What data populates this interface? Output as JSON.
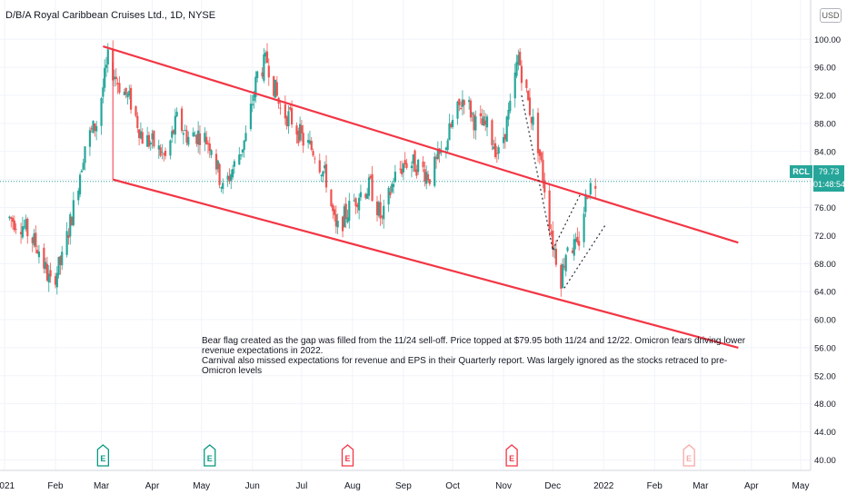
{
  "header": {
    "title": "D/B/A Royal Caribbean Cruises Ltd., 1D, NYSE",
    "currency": "USD"
  },
  "last_price": {
    "ticker": "RCL",
    "price": "79.73",
    "countdown": "01:48:54"
  },
  "annotation": {
    "line1": "Bear flag created as the gap was filled from the 11/24 sell-off. Price topped at $79.95 both 11/24 and 12/22. Omicron fears driving lower revenue expectations in 2022.",
    "line2": "Carnival also missed expectations for revenue and EPS in their Quarterly report.  Was largely ignored as the stocks retraced to pre-Omicron levels"
  },
  "colors": {
    "up": "#26a69a",
    "down": "#ef5350",
    "trendline": "#f23645",
    "grid": "#f0f3fa"
  },
  "chart_data": {
    "type": "candlestick",
    "title": "D/B/A Royal Caribbean Cruises Ltd., 1D, NYSE",
    "y_axis": {
      "ticks": [
        "100.00",
        "96.00",
        "92.00",
        "88.00",
        "84.00",
        "80.00",
        "76.00",
        "72.00",
        "68.00",
        "64.00",
        "60.00",
        "56.00",
        "52.00",
        "48.00",
        "44.00",
        "40.00"
      ],
      "range": [
        38.5,
        102.5
      ]
    },
    "x_axis": {
      "ticks": [
        "2021",
        "Feb",
        "Mar",
        "Apr",
        "May",
        "Jun",
        "Jul",
        "Aug",
        "Sep",
        "Oct",
        "Nov",
        "Dec",
        "2022",
        "Feb",
        "Mar",
        "Apr",
        "May"
      ]
    },
    "close_path": [
      [
        "2021-01-04",
        74.5
      ],
      [
        "2021-01-12",
        73.5
      ],
      [
        "2021-01-22",
        70.0
      ],
      [
        "2021-01-29",
        65.0
      ],
      [
        "2021-02-05",
        68.5
      ],
      [
        "2021-02-12",
        76.0
      ],
      [
        "2021-02-19",
        85.0
      ],
      [
        "2021-02-26",
        88.0
      ],
      [
        "2021-03-05",
        97.0
      ],
      [
        "2021-03-12",
        93.5
      ],
      [
        "2021-03-19",
        91.0
      ],
      [
        "2021-03-26",
        86.0
      ],
      [
        "2021-04-02",
        85.0
      ],
      [
        "2021-04-09",
        83.0
      ],
      [
        "2021-04-16",
        88.5
      ],
      [
        "2021-04-23",
        86.0
      ],
      [
        "2021-04-30",
        86.5
      ],
      [
        "2021-05-07",
        85.0
      ],
      [
        "2021-05-14",
        78.5
      ],
      [
        "2021-05-21",
        82.0
      ],
      [
        "2021-05-28",
        86.0
      ],
      [
        "2021-06-04",
        95.0
      ],
      [
        "2021-06-10",
        97.0
      ],
      [
        "2021-06-18",
        90.0
      ],
      [
        "2021-06-25",
        88.5
      ],
      [
        "2021-07-02",
        85.5
      ],
      [
        "2021-07-09",
        84.0
      ],
      [
        "2021-07-16",
        80.0
      ],
      [
        "2021-07-22",
        72.5
      ],
      [
        "2021-07-29",
        75.5
      ],
      [
        "2021-08-05",
        78.0
      ],
      [
        "2021-08-12",
        79.0
      ],
      [
        "2021-08-19",
        74.0
      ],
      [
        "2021-08-26",
        80.0
      ],
      [
        "2021-09-02",
        82.5
      ],
      [
        "2021-09-10",
        82.0
      ],
      [
        "2021-09-17",
        80.5
      ],
      [
        "2021-09-24",
        83.5
      ],
      [
        "2021-10-01",
        88.0
      ],
      [
        "2021-10-08",
        92.0
      ],
      [
        "2021-10-15",
        88.0
      ],
      [
        "2021-10-22",
        87.5
      ],
      [
        "2021-10-29",
        83.5
      ],
      [
        "2021-11-05",
        90.0
      ],
      [
        "2021-11-10",
        97.5
      ],
      [
        "2021-11-16",
        91.0
      ],
      [
        "2021-11-22",
        85.0
      ],
      [
        "2021-11-26",
        79.0
      ],
      [
        "2021-12-01",
        71.0
      ],
      [
        "2021-12-06",
        66.0
      ],
      [
        "2021-12-10",
        71.0
      ],
      [
        "2021-12-16",
        70.0
      ],
      [
        "2021-12-22",
        78.5
      ],
      [
        "2021-12-27",
        79.7
      ]
    ],
    "trendlines": [
      {
        "name": "upper channel",
        "points": [
          [
            "2021-03-02",
            99.0
          ],
          [
            "2022-03-24",
            71.0
          ]
        ]
      },
      {
        "name": "lower channel",
        "points": [
          [
            "2021-03-08",
            80.0
          ],
          [
            "2022-03-24",
            56.0
          ]
        ]
      },
      {
        "name": "bear flag upper",
        "points": [
          [
            "2021-12-01",
            70.0
          ],
          [
            "2021-12-18",
            78.0
          ]
        ]
      },
      {
        "name": "bear flag lower",
        "points": [
          [
            "2021-12-08",
            64.5
          ],
          [
            "2022-01-02",
            73.5
          ]
        ]
      },
      {
        "name": "drop",
        "points": [
          [
            "2021-11-12",
            92.0
          ],
          [
            "2021-12-01",
            70.0
          ]
        ]
      }
    ],
    "earnings_markers": [
      {
        "date": "2021-03-02",
        "sentiment": "positive"
      },
      {
        "date": "2021-05-06",
        "sentiment": "positive"
      },
      {
        "date": "2021-07-29",
        "sentiment": "negative"
      },
      {
        "date": "2021-11-06",
        "sentiment": "negative"
      },
      {
        "date": "2022-02-22",
        "sentiment": "upcoming"
      }
    ],
    "last_price_line": 79.73,
    "grid": true
  }
}
